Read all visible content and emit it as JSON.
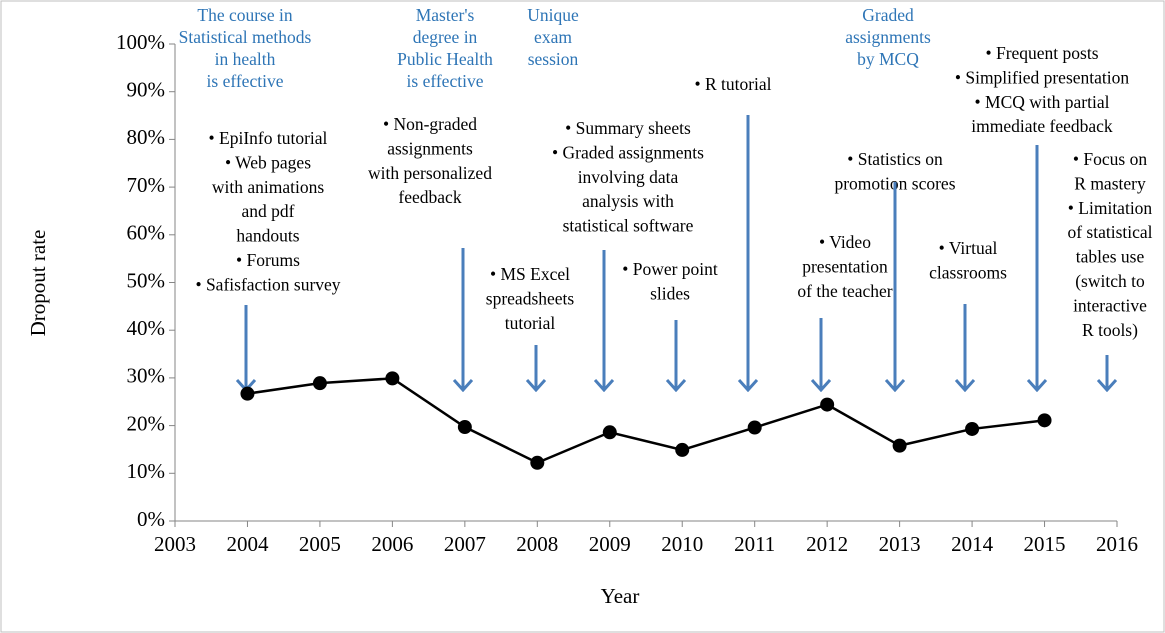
{
  "chart_data": {
    "type": "line",
    "xlabel": "Year",
    "ylabel": "Dropout rate",
    "x": [
      2004,
      2005,
      2006,
      2007,
      2008,
      2009,
      2010,
      2011,
      2012,
      2013,
      2014,
      2015
    ],
    "series": [
      {
        "color": "#000000",
        "values": [
          26.7,
          28.9,
          29.9,
          19.7,
          12.2,
          18.6,
          14.9,
          19.6,
          24.4,
          15.8,
          19.3,
          21.1
        ]
      }
    ],
    "xlim": [
      2003,
      2016
    ],
    "xticks": [
      2003,
      2004,
      2005,
      2006,
      2007,
      2008,
      2009,
      2010,
      2011,
      2012,
      2013,
      2014,
      2015,
      2016
    ],
    "ylim": [
      0,
      100
    ],
    "yticks": [
      {
        "value": 0,
        "label": "0%"
      },
      {
        "value": 10,
        "label": "10%"
      },
      {
        "value": 20,
        "label": "20%"
      },
      {
        "value": 30,
        "label": "30%"
      },
      {
        "value": 40,
        "label": "40%"
      },
      {
        "value": 50,
        "label": "50%"
      },
      {
        "value": 60,
        "label": "60%"
      },
      {
        "value": 70,
        "label": "70%"
      },
      {
        "value": 80,
        "label": "80%"
      },
      {
        "value": 90,
        "label": "90%"
      },
      {
        "value": 100,
        "label": "100%"
      }
    ],
    "arrow_color": "#4a7ebb",
    "annotations": [
      {
        "color": "#2e75b6",
        "lines": [
          "The course in",
          "Statistical methods",
          "in health",
          "is effective"
        ]
      },
      {
        "color": "#2e75b6",
        "lines": [
          "Master's",
          "degree in",
          "Public Health",
          "is effective"
        ]
      },
      {
        "color": "#2e75b6",
        "lines": [
          "Unique",
          "exam",
          "session"
        ]
      },
      {
        "color": "#2e75b6",
        "lines": [
          "Graded",
          "assignments",
          "by MCQ"
        ]
      },
      {
        "color": "#000000",
        "lines": [
          "• EpiInfo tutorial",
          "• Web pages",
          "with animations",
          "and pdf",
          "handouts",
          "• Forums",
          "• Safisfaction survey"
        ]
      },
      {
        "color": "#000000",
        "lines": [
          "• Non-graded",
          "assignments",
          "with personalized",
          "feedback"
        ]
      },
      {
        "color": "#000000",
        "lines": [
          "• MS Excel",
          "spreadsheets",
          "tutorial"
        ]
      },
      {
        "color": "#000000",
        "lines": [
          "• Summary sheets",
          "• Graded assignments",
          "involving data",
          "analysis with",
          "statistical software"
        ]
      },
      {
        "color": "#000000",
        "lines": [
          "• Power point",
          "slides"
        ]
      },
      {
        "color": "#000000",
        "lines": [
          "• R tutorial"
        ]
      },
      {
        "color": "#000000",
        "lines": [
          "• Video",
          "presentation",
          "of the teacher"
        ]
      },
      {
        "color": "#000000",
        "lines": [
          "• Statistics on",
          "promotion scores"
        ]
      },
      {
        "color": "#000000",
        "lines": [
          "• Virtual",
          "classrooms"
        ]
      },
      {
        "color": "#000000",
        "lines": [
          "• Frequent posts",
          "• Simplified presentation",
          "• MCQ with partial",
          "immediate feedback"
        ]
      },
      {
        "color": "#000000",
        "lines": [
          "• Focus on",
          "R mastery",
          "• Limitation",
          "of statistical",
          "tables use",
          "(switch to",
          "interactive",
          "R tools)"
        ]
      }
    ]
  }
}
